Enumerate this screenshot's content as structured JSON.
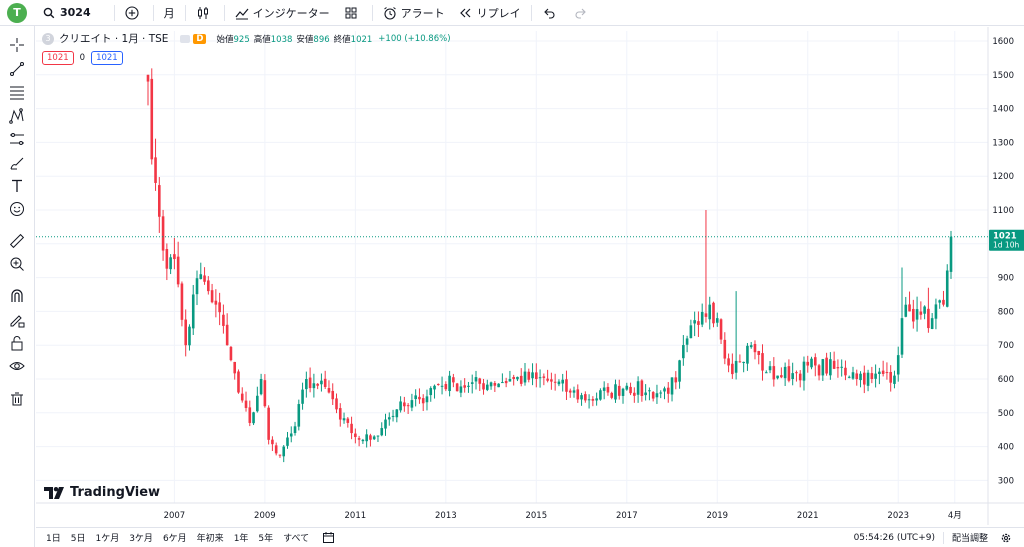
{
  "topbar": {
    "avatar_letter": "T",
    "symbol": "3024",
    "interval": "月",
    "indicators_label": "インジケーター",
    "alert_label": "アラート",
    "replay_label": "リプレイ"
  },
  "legend": {
    "logo_letter": "3",
    "title": "クリエイト · 1月 · TSE",
    "badge": "D",
    "open_label": "始値",
    "open": "925",
    "high_label": "高値",
    "high": "1038",
    "low_label": "安値",
    "low": "896",
    "close_label": "終値",
    "close": "1021",
    "change": "+100 (+10.86%)"
  },
  "price_buttons": {
    "sell": "1021",
    "spread": "0",
    "buy": "1021"
  },
  "branding": {
    "name": "TradingView"
  },
  "bottombar": {
    "ranges": [
      "1日",
      "5日",
      "1ケ月",
      "3ケ月",
      "6ケ月",
      "年初来",
      "1年",
      "5年",
      "すべて"
    ],
    "time": "05:54:26 (UTC+9)",
    "adjust": "配当調整"
  },
  "price_label": {
    "value": "1021",
    "countdown": "1d 10h"
  },
  "colors": {
    "up": "#089981",
    "down": "#f23645",
    "grid": "#f0f3fa",
    "text": "#131722"
  },
  "chart_data": {
    "type": "candlestick",
    "interval": "monthly",
    "x_tick_labels": [
      "2007",
      "2009",
      "2011",
      "2013",
      "2015",
      "2017",
      "2019",
      "2021",
      "2023",
      "4月"
    ],
    "y_ticks": [
      300,
      400,
      500,
      600,
      700,
      800,
      900,
      1000,
      1100,
      1200,
      1300,
      1400,
      1500,
      1600
    ],
    "ylim": [
      270,
      1620
    ],
    "last_price": 1021,
    "grid": true,
    "anchors": [
      [
        "2006-06",
        1480
      ],
      [
        "2006-07",
        1250
      ],
      [
        "2006-08",
        1180
      ],
      [
        "2006-09",
        1080
      ],
      [
        "2006-10",
        980
      ],
      [
        "2006-12",
        960
      ],
      [
        "2007-02",
        880
      ],
      [
        "2007-04",
        700
      ],
      [
        "2007-06",
        850
      ],
      [
        "2007-08",
        910
      ],
      [
        "2007-10",
        860
      ],
      [
        "2007-12",
        820
      ],
      [
        "2008-03",
        700
      ],
      [
        "2008-06",
        560
      ],
      [
        "2008-09",
        470
      ],
      [
        "2008-12",
        600
      ],
      [
        "2009-02",
        420
      ],
      [
        "2009-04",
        380
      ],
      [
        "2009-06",
        400
      ],
      [
        "2009-09",
        460
      ],
      [
        "2009-12",
        600
      ],
      [
        "2010-03",
        580
      ],
      [
        "2010-06",
        560
      ],
      [
        "2010-09",
        480
      ],
      [
        "2010-12",
        440
      ],
      [
        "2011-03",
        420
      ],
      [
        "2011-06",
        430
      ],
      [
        "2011-09",
        480
      ],
      [
        "2011-12",
        510
      ],
      [
        "2012-03",
        520
      ],
      [
        "2012-06",
        540
      ],
      [
        "2012-10",
        580
      ],
      [
        "2013-03",
        590
      ],
      [
        "2013-07",
        580
      ],
      [
        "2014-01",
        590
      ],
      [
        "2014-07",
        600
      ],
      [
        "2015-01",
        600
      ],
      [
        "2015-06",
        590
      ],
      [
        "2015-10",
        560
      ],
      [
        "2016-03",
        540
      ],
      [
        "2016-08",
        560
      ],
      [
        "2017-01",
        580
      ],
      [
        "2017-06",
        560
      ],
      [
        "2017-10",
        560
      ],
      [
        "2018-02",
        590
      ],
      [
        "2018-05",
        720
      ],
      [
        "2018-08",
        760
      ],
      [
        "2018-11",
        820
      ],
      [
        "2019-01",
        780
      ],
      [
        "2019-04",
        640
      ],
      [
        "2019-07",
        650
      ],
      [
        "2019-10",
        700
      ],
      [
        "2020-02",
        620
      ],
      [
        "2020-05",
        610
      ],
      [
        "2020-10",
        620
      ],
      [
        "2021-03",
        640
      ],
      [
        "2021-08",
        630
      ],
      [
        "2022-01",
        620
      ],
      [
        "2022-06",
        600
      ],
      [
        "2022-10",
        620
      ],
      [
        "2022-12",
        610
      ],
      [
        "2023-02",
        780
      ],
      [
        "2023-04",
        800
      ],
      [
        "2023-07",
        790
      ],
      [
        "2023-10",
        780
      ],
      [
        "2024-01",
        820
      ],
      [
        "2024-02",
        921
      ],
      [
        "2024-03",
        1021
      ]
    ],
    "highlights": [
      {
        "month": "2018-10",
        "high": 1100
      },
      {
        "month": "2019-06",
        "high": 860
      },
      {
        "month": "2023-02",
        "high": 930
      },
      {
        "month": "2023-09",
        "high": 870
      }
    ]
  }
}
